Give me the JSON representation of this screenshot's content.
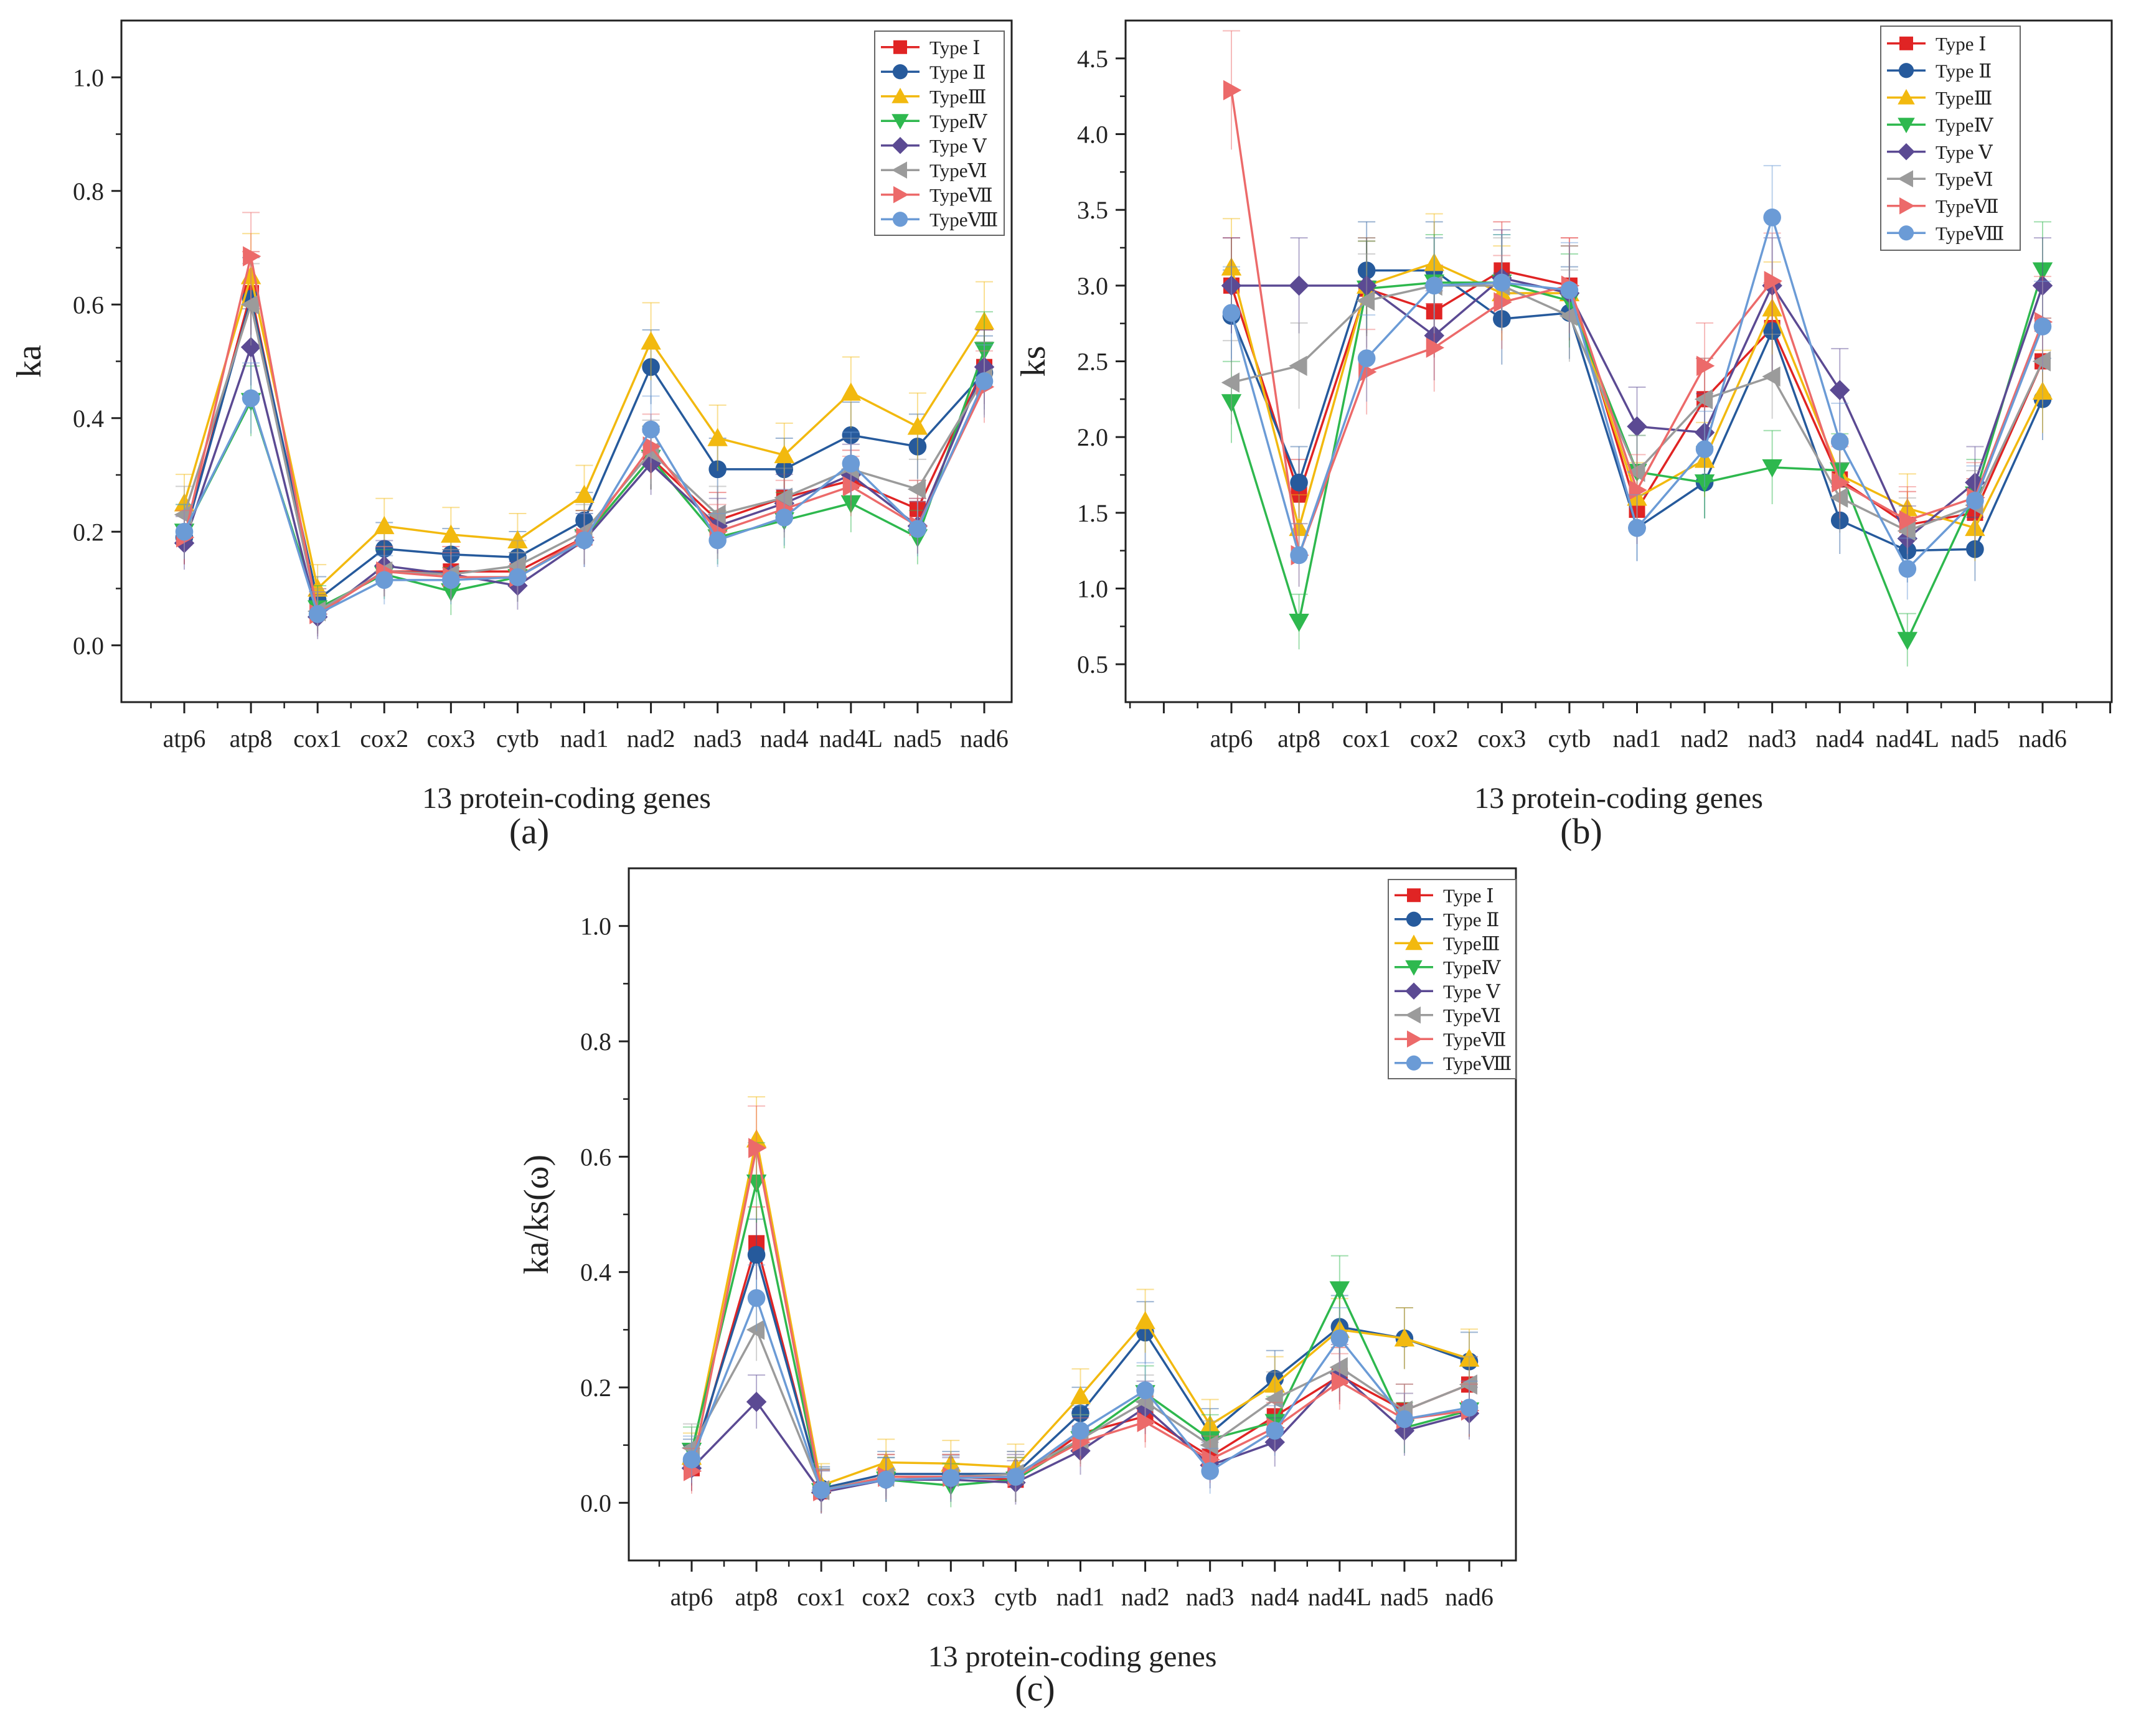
{
  "categories_note": "",
  "legend_colors": {
    "Type Ⅰ": "#e02424",
    "Type Ⅱ": "#265a9c",
    "TypeⅢ": "#f2b90f",
    "TypeⅣ": "#2eb84e",
    "Type Ⅴ": "#5b4a93",
    "TypeⅥ": "#9b9b9b",
    "TypeⅦ": "#ec6a6a",
    "TypeⅧ": "#6b9bd6"
  },
  "chart_data": [
    {
      "type": "line",
      "panel_label": "(a)",
      "xlabel": "13 protein-coding genes",
      "ylabel": "ka",
      "categories": [
        "atp6",
        "atp8",
        "cox1",
        "cox2",
        "cox3",
        "cytb",
        "nad1",
        "nad2",
        "nad3",
        "nad4",
        "nad4L",
        "nad5",
        "nad6"
      ],
      "ylim": [
        -0.1,
        1.1
      ],
      "yticks": [
        "0.0",
        "0.2",
        "0.4",
        "0.6",
        "0.8",
        "1.0"
      ],
      "yticks_values": [
        0.0,
        0.2,
        0.4,
        0.6,
        0.8,
        1.0
      ],
      "legend_position": "top-right",
      "series": [
        {
          "name": "Type Ⅰ",
          "marker": "square",
          "color": "#e02424",
          "values": [
            0.19,
            0.62,
            0.06,
            0.13,
            0.13,
            0.13,
            0.19,
            0.33,
            0.22,
            0.26,
            0.29,
            0.24,
            0.49
          ]
        },
        {
          "name": "Type Ⅱ",
          "marker": "circle",
          "color": "#265a9c",
          "values": [
            0.19,
            0.61,
            0.08,
            0.17,
            0.16,
            0.155,
            0.22,
            0.49,
            0.31,
            0.31,
            0.37,
            0.35,
            0.48
          ]
        },
        {
          "name": "TypeⅢ",
          "marker": "triangle-up",
          "color": "#f2b90f",
          "values": [
            0.25,
            0.65,
            0.1,
            0.21,
            0.195,
            0.185,
            0.265,
            0.535,
            0.365,
            0.335,
            0.445,
            0.385,
            0.57
          ]
        },
        {
          "name": "TypeⅣ",
          "marker": "triangle-down",
          "color": "#2eb84e",
          "values": [
            0.2,
            0.43,
            0.065,
            0.125,
            0.095,
            0.12,
            0.19,
            0.33,
            0.19,
            0.22,
            0.25,
            0.19,
            0.52
          ]
        },
        {
          "name": "Type Ⅴ",
          "marker": "diamond",
          "color": "#5b4a93",
          "values": [
            0.18,
            0.525,
            0.05,
            0.14,
            0.125,
            0.105,
            0.185,
            0.32,
            0.21,
            0.25,
            0.3,
            0.21,
            0.49
          ]
        },
        {
          "name": "TypeⅥ",
          "marker": "triangle-left",
          "color": "#9b9b9b",
          "values": [
            0.23,
            0.6,
            0.06,
            0.13,
            0.125,
            0.14,
            0.2,
            0.34,
            0.23,
            0.26,
            0.31,
            0.275,
            0.47
          ]
        },
        {
          "name": "TypeⅦ",
          "marker": "triangle-right",
          "color": "#ec6a6a",
          "values": [
            0.19,
            0.685,
            0.055,
            0.13,
            0.12,
            0.12,
            0.19,
            0.35,
            0.2,
            0.24,
            0.28,
            0.21,
            0.455
          ]
        },
        {
          "name": "TypeⅧ",
          "marker": "circle",
          "color": "#6b9bd6",
          "values": [
            0.2,
            0.435,
            0.055,
            0.115,
            0.115,
            0.12,
            0.185,
            0.38,
            0.185,
            0.225,
            0.32,
            0.205,
            0.465
          ]
        }
      ]
    },
    {
      "type": "line",
      "panel_label": "(b)",
      "xlabel": "13 protein-coding genes",
      "ylabel": "ks",
      "categories": [
        "atp6",
        "atp8",
        "cox1",
        "cox2",
        "cox3",
        "cytb",
        "nad1",
        "nad2",
        "nad3",
        "nad4",
        "nad4L",
        "nad5",
        "nad6"
      ],
      "ylim": [
        0.25,
        4.75
      ],
      "yticks": [
        "0.5",
        "1.0",
        "1.5",
        "2.0",
        "2.5",
        "3.0",
        "3.5",
        "4.0",
        "4.5"
      ],
      "yticks_values": [
        0.5,
        1.0,
        1.5,
        2.0,
        2.5,
        3.0,
        3.5,
        4.0,
        4.5
      ],
      "legend_position": "top-right",
      "series": [
        {
          "name": "Type Ⅰ",
          "marker": "square",
          "color": "#e02424",
          "values": [
            3.0,
            1.62,
            2.98,
            2.83,
            3.1,
            3.0,
            1.52,
            2.25,
            2.72,
            1.72,
            1.42,
            1.5,
            2.5
          ]
        },
        {
          "name": "Type Ⅱ",
          "marker": "circle",
          "color": "#265a9c",
          "values": [
            2.8,
            1.7,
            3.1,
            3.1,
            2.78,
            2.82,
            1.4,
            1.7,
            2.7,
            1.45,
            1.25,
            1.26,
            2.25
          ]
        },
        {
          "name": "TypeⅢ",
          "marker": "triangle-up",
          "color": "#f2b90f",
          "values": [
            3.12,
            1.4,
            3.0,
            3.15,
            2.95,
            2.95,
            1.6,
            1.85,
            2.85,
            1.75,
            1.53,
            1.4,
            2.3
          ]
        },
        {
          "name": "TypeⅣ",
          "marker": "triangle-down",
          "color": "#2eb84e",
          "values": [
            2.23,
            0.78,
            2.98,
            3.02,
            3.02,
            2.9,
            1.77,
            1.7,
            1.8,
            1.78,
            0.66,
            1.62,
            3.1
          ]
        },
        {
          "name": "Type Ⅴ",
          "marker": "diamond",
          "color": "#5b4a93",
          "values": [
            3.0,
            3.0,
            3.0,
            2.67,
            3.05,
            2.95,
            2.07,
            2.03,
            3.0,
            2.31,
            1.33,
            1.7,
            3.0
          ]
        },
        {
          "name": "TypeⅥ",
          "marker": "triangle-left",
          "color": "#9b9b9b",
          "values": [
            2.36,
            2.47,
            2.9,
            3.0,
            3.0,
            2.8,
            1.77,
            2.25,
            2.4,
            1.6,
            1.38,
            1.55,
            2.5
          ]
        },
        {
          "name": "TypeⅦ",
          "marker": "triangle-right",
          "color": "#ec6a6a",
          "values": [
            4.29,
            1.22,
            2.43,
            2.59,
            2.89,
            3.0,
            1.65,
            2.47,
            3.03,
            1.7,
            1.45,
            1.6,
            2.76
          ]
        },
        {
          "name": "TypeⅧ",
          "marker": "circle",
          "color": "#6b9bd6",
          "values": [
            2.82,
            1.22,
            2.52,
            3.0,
            3.02,
            2.97,
            1.4,
            1.92,
            3.45,
            1.97,
            1.13,
            1.58,
            2.73
          ]
        }
      ]
    },
    {
      "type": "line",
      "panel_label": "(c)",
      "xlabel": "13 protein-coding genes",
      "ylabel": "ka/ks(ω)",
      "categories": [
        "atp6",
        "atp8",
        "cox1",
        "cox2",
        "cox3",
        "cytb",
        "nad1",
        "nad2",
        "nad3",
        "nad4",
        "nad4L",
        "nad5",
        "nad6"
      ],
      "ylim": [
        -0.1,
        1.1
      ],
      "yticks": [
        "0.0",
        "0.2",
        "0.4",
        "0.6",
        "0.8",
        "1.0"
      ],
      "yticks_values": [
        0.0,
        0.2,
        0.4,
        0.6,
        0.8,
        1.0
      ],
      "legend_position": "top-right",
      "series": [
        {
          "name": "Type Ⅰ",
          "marker": "square",
          "color": "#e02424",
          "values": [
            0.06,
            0.45,
            0.02,
            0.045,
            0.045,
            0.04,
            0.12,
            0.15,
            0.08,
            0.15,
            0.22,
            0.16,
            0.205
          ]
        },
        {
          "name": "Type Ⅱ",
          "marker": "circle",
          "color": "#265a9c",
          "values": [
            0.07,
            0.43,
            0.025,
            0.05,
            0.05,
            0.05,
            0.155,
            0.295,
            0.12,
            0.215,
            0.305,
            0.285,
            0.245
          ]
        },
        {
          "name": "TypeⅢ",
          "marker": "triangle-up",
          "color": "#f2b90f",
          "values": [
            0.08,
            0.63,
            0.03,
            0.07,
            0.068,
            0.062,
            0.185,
            0.315,
            0.135,
            0.205,
            0.3,
            0.285,
            0.25
          ]
        },
        {
          "name": "TypeⅣ",
          "marker": "triangle-down",
          "color": "#2eb84e",
          "values": [
            0.09,
            0.555,
            0.02,
            0.04,
            0.03,
            0.04,
            0.11,
            0.19,
            0.11,
            0.14,
            0.37,
            0.13,
            0.16
          ]
        },
        {
          "name": "Type Ⅴ",
          "marker": "diamond",
          "color": "#5b4a93",
          "values": [
            0.06,
            0.175,
            0.018,
            0.04,
            0.04,
            0.035,
            0.09,
            0.165,
            0.065,
            0.105,
            0.225,
            0.125,
            0.155
          ]
        },
        {
          "name": "TypeⅥ",
          "marker": "triangle-left",
          "color": "#9b9b9b",
          "values": [
            0.095,
            0.3,
            0.022,
            0.045,
            0.045,
            0.05,
            0.11,
            0.175,
            0.1,
            0.18,
            0.235,
            0.16,
            0.205
          ]
        },
        {
          "name": "TypeⅦ",
          "marker": "triangle-right",
          "color": "#ec6a6a",
          "values": [
            0.055,
            0.615,
            0.02,
            0.045,
            0.045,
            0.045,
            0.105,
            0.14,
            0.075,
            0.13,
            0.21,
            0.145,
            0.16
          ]
        },
        {
          "name": "TypeⅧ",
          "marker": "circle",
          "color": "#6b9bd6",
          "values": [
            0.075,
            0.355,
            0.022,
            0.04,
            0.043,
            0.045,
            0.125,
            0.195,
            0.055,
            0.125,
            0.285,
            0.145,
            0.165
          ]
        }
      ]
    }
  ]
}
